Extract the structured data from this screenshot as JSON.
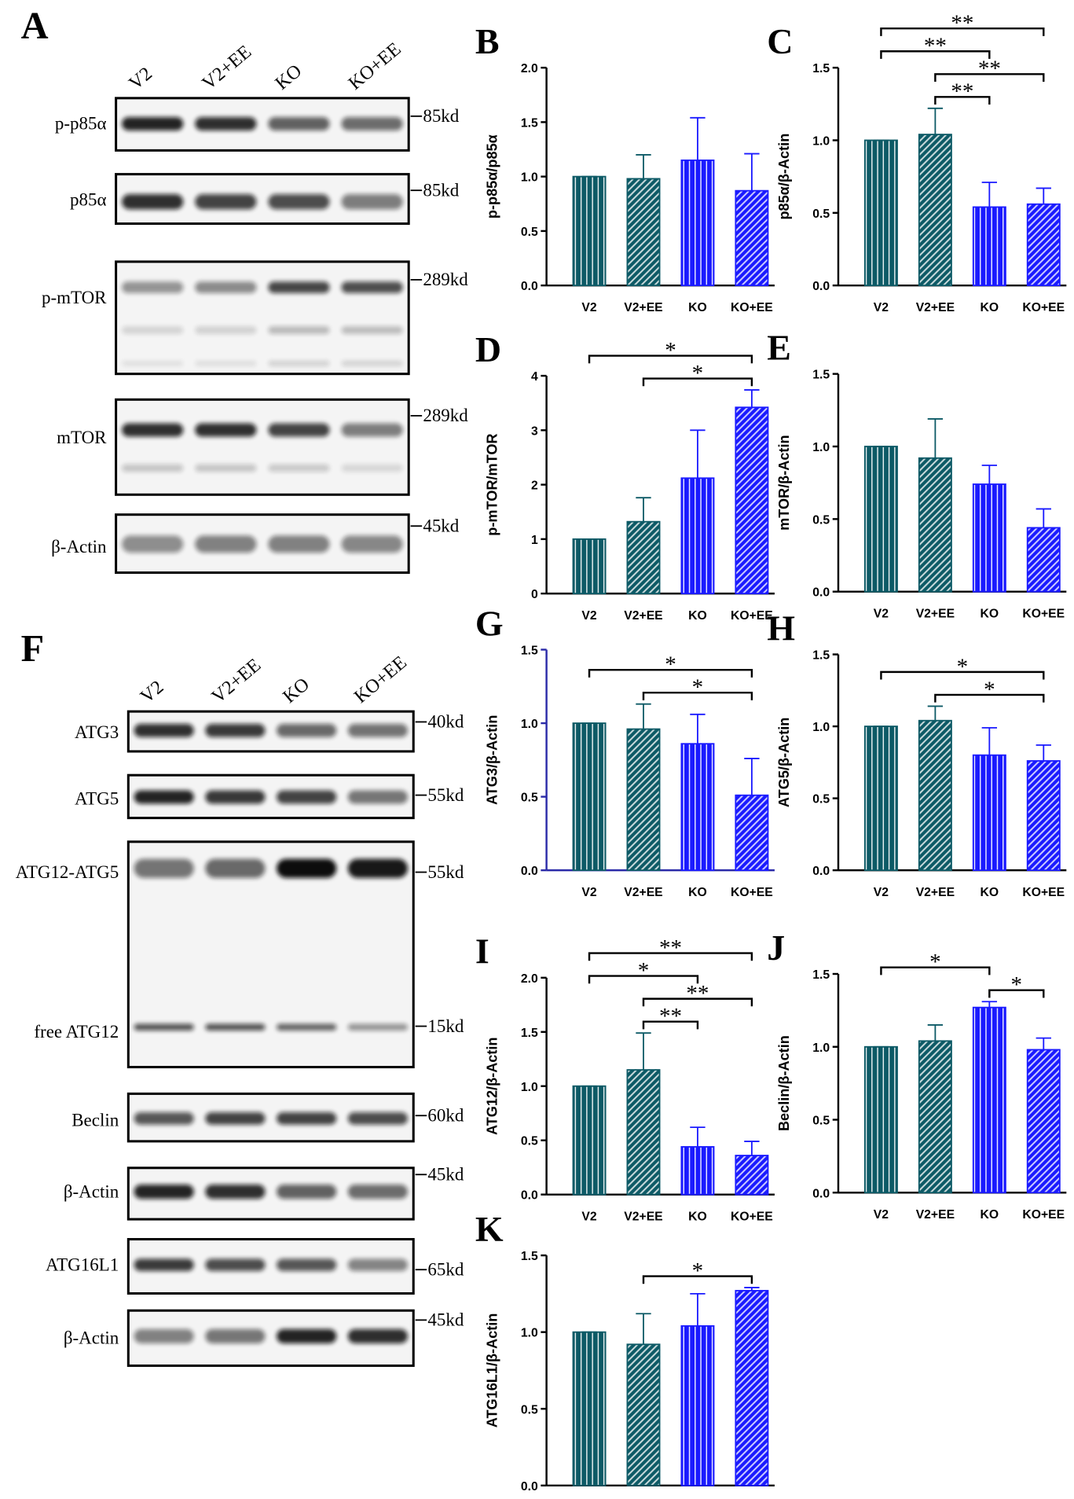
{
  "blots": [
    {
      "label": "A",
      "lanes": [
        "V2",
        "V2+EE",
        "KO",
        "KO+EE"
      ],
      "rows": [
        {
          "protein": "p-p85α",
          "marker": "85kd"
        },
        {
          "protein": "p85α",
          "marker": "85kd"
        },
        {
          "protein": "p-mTOR",
          "marker": "289kd"
        },
        {
          "protein": "mTOR",
          "marker": "289kd"
        },
        {
          "protein": "β-Actin",
          "marker": "45kd"
        }
      ]
    },
    {
      "label": "F",
      "lanes": [
        "V2",
        "V2+EE",
        "KO",
        "KO+EE"
      ],
      "rows": [
        {
          "protein": "ATG3",
          "marker": "40kd"
        },
        {
          "protein": "ATG5",
          "marker": "55kd"
        },
        {
          "protein": "ATG12-ATG5",
          "marker": "55kd"
        },
        {
          "protein": "free ATG12",
          "marker": "15kd"
        },
        {
          "protein": "Beclin",
          "marker": "60kd"
        },
        {
          "protein": "β-Actin",
          "marker": "45kd"
        },
        {
          "protein": "ATG16L1",
          "marker": "65kd"
        },
        {
          "protein": "β-Actin",
          "marker": "45kd"
        }
      ]
    }
  ],
  "chart_data": [
    {
      "type": "bar",
      "panel_label": "B",
      "ylabel": "p-p85α/p85α",
      "categories": [
        "V2",
        "V2+EE",
        "KO",
        "KO+EE"
      ],
      "values": [
        1.0,
        0.98,
        1.15,
        0.87
      ],
      "errors": [
        0,
        0.22,
        0.39,
        0.34
      ],
      "colors": [
        "#0d5a66",
        "#0d5a66",
        "#1a1aff",
        "#1a1aff"
      ],
      "hatch": [
        "vertical",
        "diagonal",
        "vertical",
        "diagonal"
      ],
      "ylim": [
        0,
        2
      ],
      "yticks": [
        {
          "value": 0,
          "label": "0.0"
        },
        {
          "value": 0.5,
          "label": "0.5"
        },
        {
          "value": 1,
          "label": "1.0"
        },
        {
          "value": 1.5,
          "label": "1.5"
        },
        {
          "value": 2,
          "label": "2.0"
        }
      ],
      "axis_color": "#000000",
      "significance": []
    },
    {
      "type": "bar",
      "panel_label": "C",
      "ylabel": "p85α/β-Actin",
      "categories": [
        "V2",
        "V2+EE",
        "KO",
        "KO+EE"
      ],
      "values": [
        1.0,
        1.04,
        0.54,
        0.56
      ],
      "errors": [
        0,
        0.18,
        0.17,
        0.11
      ],
      "colors": [
        "#0d5a66",
        "#0d5a66",
        "#1a1aff",
        "#1a1aff"
      ],
      "hatch": [
        "vertical",
        "diagonal",
        "vertical",
        "diagonal"
      ],
      "ylim": [
        0,
        1.5
      ],
      "yticks": [
        {
          "value": 0,
          "label": "0.0"
        },
        {
          "value": 0.5,
          "label": "0.5"
        },
        {
          "value": 1,
          "label": "1.0"
        },
        {
          "value": 1.5,
          "label": "1.5"
        }
      ],
      "axis_color": "#000000",
      "significance": [
        {
          "from": 1,
          "to": 2,
          "label": "**"
        },
        {
          "from": 1,
          "to": 3,
          "label": "**"
        },
        {
          "from": 0,
          "to": 2,
          "label": "**"
        },
        {
          "from": 0,
          "to": 3,
          "label": "**"
        }
      ]
    },
    {
      "type": "bar",
      "panel_label": "D",
      "ylabel": "p-mTOR/mTOR",
      "categories": [
        "V2",
        "V2+EE",
        "KO",
        "KO+EE"
      ],
      "values": [
        1.0,
        1.32,
        2.12,
        3.42
      ],
      "errors": [
        0,
        0.44,
        0.88,
        0.32
      ],
      "colors": [
        "#0d5a66",
        "#0d5a66",
        "#1a1aff",
        "#1a1aff"
      ],
      "hatch": [
        "vertical",
        "diagonal",
        "vertical",
        "diagonal"
      ],
      "ylim": [
        0,
        4
      ],
      "yticks": [
        0,
        1,
        2,
        3,
        4
      ],
      "axis_color": "#000000",
      "significance": [
        {
          "from": 1,
          "to": 3,
          "label": "*"
        },
        {
          "from": 0,
          "to": 3,
          "label": "*"
        }
      ]
    },
    {
      "type": "bar",
      "panel_label": "E",
      "ylabel": "mTOR/β-Actin",
      "categories": [
        "V2",
        "V2+EE",
        "KO",
        "KO+EE"
      ],
      "values": [
        1.0,
        0.92,
        0.74,
        0.44
      ],
      "errors": [
        0,
        0.27,
        0.13,
        0.13
      ],
      "colors": [
        "#0d5a66",
        "#0d5a66",
        "#1a1aff",
        "#1a1aff"
      ],
      "hatch": [
        "vertical",
        "diagonal",
        "vertical",
        "diagonal"
      ],
      "ylim": [
        0,
        1.5
      ],
      "yticks": [
        {
          "value": 0,
          "label": "0.0"
        },
        {
          "value": 0.5,
          "label": "0.5"
        },
        {
          "value": 1,
          "label": "1.0"
        },
        {
          "value": 1.5,
          "label": "1.5"
        }
      ],
      "axis_color": "#000000",
      "significance": []
    },
    {
      "type": "bar",
      "panel_label": "G",
      "ylabel": "ATG3/β-Actin",
      "categories": [
        "V2",
        "V2+EE",
        "KO",
        "KO+EE"
      ],
      "values": [
        1.0,
        0.96,
        0.86,
        0.51
      ],
      "errors": [
        0,
        0.17,
        0.2,
        0.25
      ],
      "colors": [
        "#0d5a66",
        "#0d5a66",
        "#1a1aff",
        "#1a1aff"
      ],
      "hatch": [
        "vertical",
        "diagonal",
        "vertical",
        "diagonal"
      ],
      "ylim": [
        0,
        1.5
      ],
      "yticks": [
        {
          "value": 0,
          "label": "0.0"
        },
        {
          "value": 0.5,
          "label": "0.5"
        },
        {
          "value": 1,
          "label": "1.0"
        },
        {
          "value": 1.5,
          "label": "1.5"
        }
      ],
      "axis_color": "#2a2aa8",
      "significance": [
        {
          "from": 1,
          "to": 3,
          "label": "*"
        },
        {
          "from": 0,
          "to": 3,
          "label": "*"
        }
      ]
    },
    {
      "type": "bar",
      "panel_label": "H",
      "ylabel": "ATG5/β-Actin",
      "categories": [
        "V2",
        "V2+EE",
        "KO",
        "KO+EE"
      ],
      "values": [
        1.0,
        1.04,
        0.8,
        0.76
      ],
      "errors": [
        0,
        0.1,
        0.19,
        0.11
      ],
      "colors": [
        "#0d5a66",
        "#0d5a66",
        "#1a1aff",
        "#1a1aff"
      ],
      "hatch": [
        "vertical",
        "diagonal",
        "vertical",
        "diagonal"
      ],
      "ylim": [
        0,
        1.5
      ],
      "yticks": [
        {
          "value": 0,
          "label": "0.0"
        },
        {
          "value": 0.5,
          "label": "0.5"
        },
        {
          "value": 1,
          "label": "1.0"
        },
        {
          "value": 1.5,
          "label": "1.5"
        }
      ],
      "axis_color": "#000000",
      "significance": [
        {
          "from": 1,
          "to": 3,
          "label": "*"
        },
        {
          "from": 0,
          "to": 3,
          "label": "*"
        }
      ]
    },
    {
      "type": "bar",
      "panel_label": "I",
      "ylabel": "ATG12/β-Actin",
      "categories": [
        "V2",
        "V2+EE",
        "KO",
        "KO+EE"
      ],
      "values": [
        1.0,
        1.15,
        0.44,
        0.36
      ],
      "errors": [
        0,
        0.34,
        0.18,
        0.13
      ],
      "colors": [
        "#0d5a66",
        "#0d5a66",
        "#1a1aff",
        "#1a1aff"
      ],
      "hatch": [
        "vertical",
        "diagonal",
        "vertical",
        "diagonal"
      ],
      "ylim": [
        0,
        2
      ],
      "yticks": [
        {
          "value": 0,
          "label": "0.0"
        },
        {
          "value": 0.5,
          "label": "0.5"
        },
        {
          "value": 1,
          "label": "1.0"
        },
        {
          "value": 1.5,
          "label": "1.5"
        },
        {
          "value": 2,
          "label": "2.0"
        }
      ],
      "axis_color": "#000000",
      "significance": [
        {
          "from": 1,
          "to": 2,
          "label": "**"
        },
        {
          "from": 1,
          "to": 3,
          "label": "**"
        },
        {
          "from": 0,
          "to": 2,
          "label": "*"
        },
        {
          "from": 0,
          "to": 3,
          "label": "**"
        }
      ]
    },
    {
      "type": "bar",
      "panel_label": "J",
      "ylabel": "Beclin/β-Actin",
      "categories": [
        "V2",
        "V2+EE",
        "KO",
        "KO+EE"
      ],
      "values": [
        1.0,
        1.04,
        1.27,
        0.98
      ],
      "errors": [
        0,
        0.11,
        0.04,
        0.08
      ],
      "colors": [
        "#0d5a66",
        "#0d5a66",
        "#1a1aff",
        "#1a1aff"
      ],
      "hatch": [
        "vertical",
        "diagonal",
        "vertical",
        "diagonal"
      ],
      "ylim": [
        0,
        1.5
      ],
      "yticks": [
        {
          "value": 0,
          "label": "0.0"
        },
        {
          "value": 0.5,
          "label": "0.5"
        },
        {
          "value": 1,
          "label": "1.0"
        },
        {
          "value": 1.5,
          "label": "1.5"
        }
      ],
      "axis_color": "#000000",
      "significance": [
        {
          "from": 2,
          "to": 3,
          "label": "*"
        },
        {
          "from": 0,
          "to": 2,
          "label": "*"
        }
      ]
    },
    {
      "type": "bar",
      "panel_label": "K",
      "ylabel": "ATG16L1/β-Actin",
      "categories": [
        "V2",
        "V2+EE",
        "KO",
        "KO+EE"
      ],
      "values": [
        1.0,
        0.92,
        1.04,
        1.27
      ],
      "errors": [
        0,
        0.2,
        0.21,
        0.02
      ],
      "colors": [
        "#0d5a66",
        "#0d5a66",
        "#1a1aff",
        "#1a1aff"
      ],
      "hatch": [
        "vertical",
        "diagonal",
        "vertical",
        "diagonal"
      ],
      "ylim": [
        0,
        1.5
      ],
      "yticks": [
        {
          "value": 0,
          "label": "0.0"
        },
        {
          "value": 0.5,
          "label": "0.5"
        },
        {
          "value": 1,
          "label": "1.0"
        },
        {
          "value": 1.5,
          "label": "1.5"
        }
      ],
      "axis_color": "#000000",
      "significance": [
        {
          "from": 1,
          "to": 3,
          "label": "*"
        }
      ]
    }
  ]
}
